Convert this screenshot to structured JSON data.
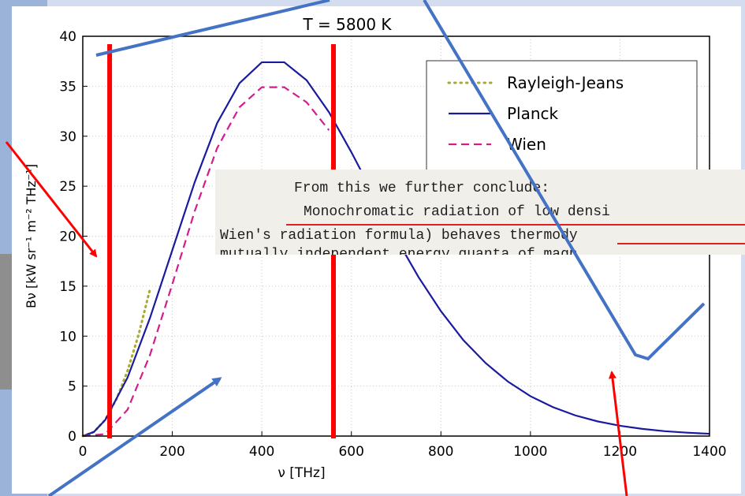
{
  "chart_data": {
    "type": "line",
    "title": "T = 5800 K",
    "xlabel": "ν [THz]",
    "ylabel": "Bν [kW sr⁻¹ m⁻² THz⁻¹]",
    "xlim": [
      0,
      1400
    ],
    "ylim": [
      0,
      40
    ],
    "xticks": [
      0,
      200,
      400,
      600,
      800,
      1000,
      1200,
      1400
    ],
    "yticks": [
      0,
      5,
      10,
      15,
      20,
      25,
      30,
      35,
      40
    ],
    "grid": true,
    "legend_position": "top-right",
    "series": [
      {
        "name": "Rayleigh-Jeans",
        "style": "dotted",
        "color": "#a8a832",
        "x": [
          0,
          25,
          50,
          75,
          100,
          125,
          150
        ],
        "y": [
          0,
          0.41,
          1.63,
          3.67,
          6.52,
          10.19,
          14.67
        ]
      },
      {
        "name": "Planck",
        "style": "solid",
        "color": "#1a1aa0",
        "x": [
          0,
          25,
          50,
          100,
          150,
          200,
          250,
          300,
          350,
          400,
          450,
          500,
          550,
          600,
          650,
          700,
          750,
          800,
          850,
          900,
          950,
          1000,
          1050,
          1100,
          1150,
          1200,
          1250,
          1300,
          1350,
          1400
        ],
        "y": [
          0,
          0.42,
          1.6,
          5.85,
          11.8,
          18.6,
          25.4,
          31.3,
          35.3,
          37.4,
          37.4,
          35.6,
          32.4,
          28.4,
          24.1,
          19.8,
          15.9,
          12.5,
          9.6,
          7.3,
          5.44,
          3.99,
          2.9,
          2.07,
          1.47,
          1.03,
          0.72,
          0.49,
          0.34,
          0.23
        ]
      },
      {
        "name": "Wien",
        "style": "dashed",
        "color": "#d21e8c",
        "x": [
          0,
          50,
          100,
          150,
          200,
          250,
          300,
          350,
          400,
          450,
          500,
          550
        ],
        "y": [
          0,
          0.2,
          2.64,
          8.1,
          15.2,
          22.5,
          28.8,
          32.9,
          34.9,
          34.9,
          33.4,
          30.6
        ]
      }
    ],
    "annotation_lines_x": [
      60,
      560
    ]
  },
  "excerpt": {
    "line1": "From this we further conclude:",
    "line2": "Monochromatic radiation of low densi",
    "line3": "Wien's radiation formula) behaves thermody",
    "line4": "mutually independent energy quanta of magn"
  },
  "colors": {
    "highlight_red": "#ff0000",
    "arrow_blue": "#4472c4",
    "slide_bg": "#d3ddef"
  }
}
